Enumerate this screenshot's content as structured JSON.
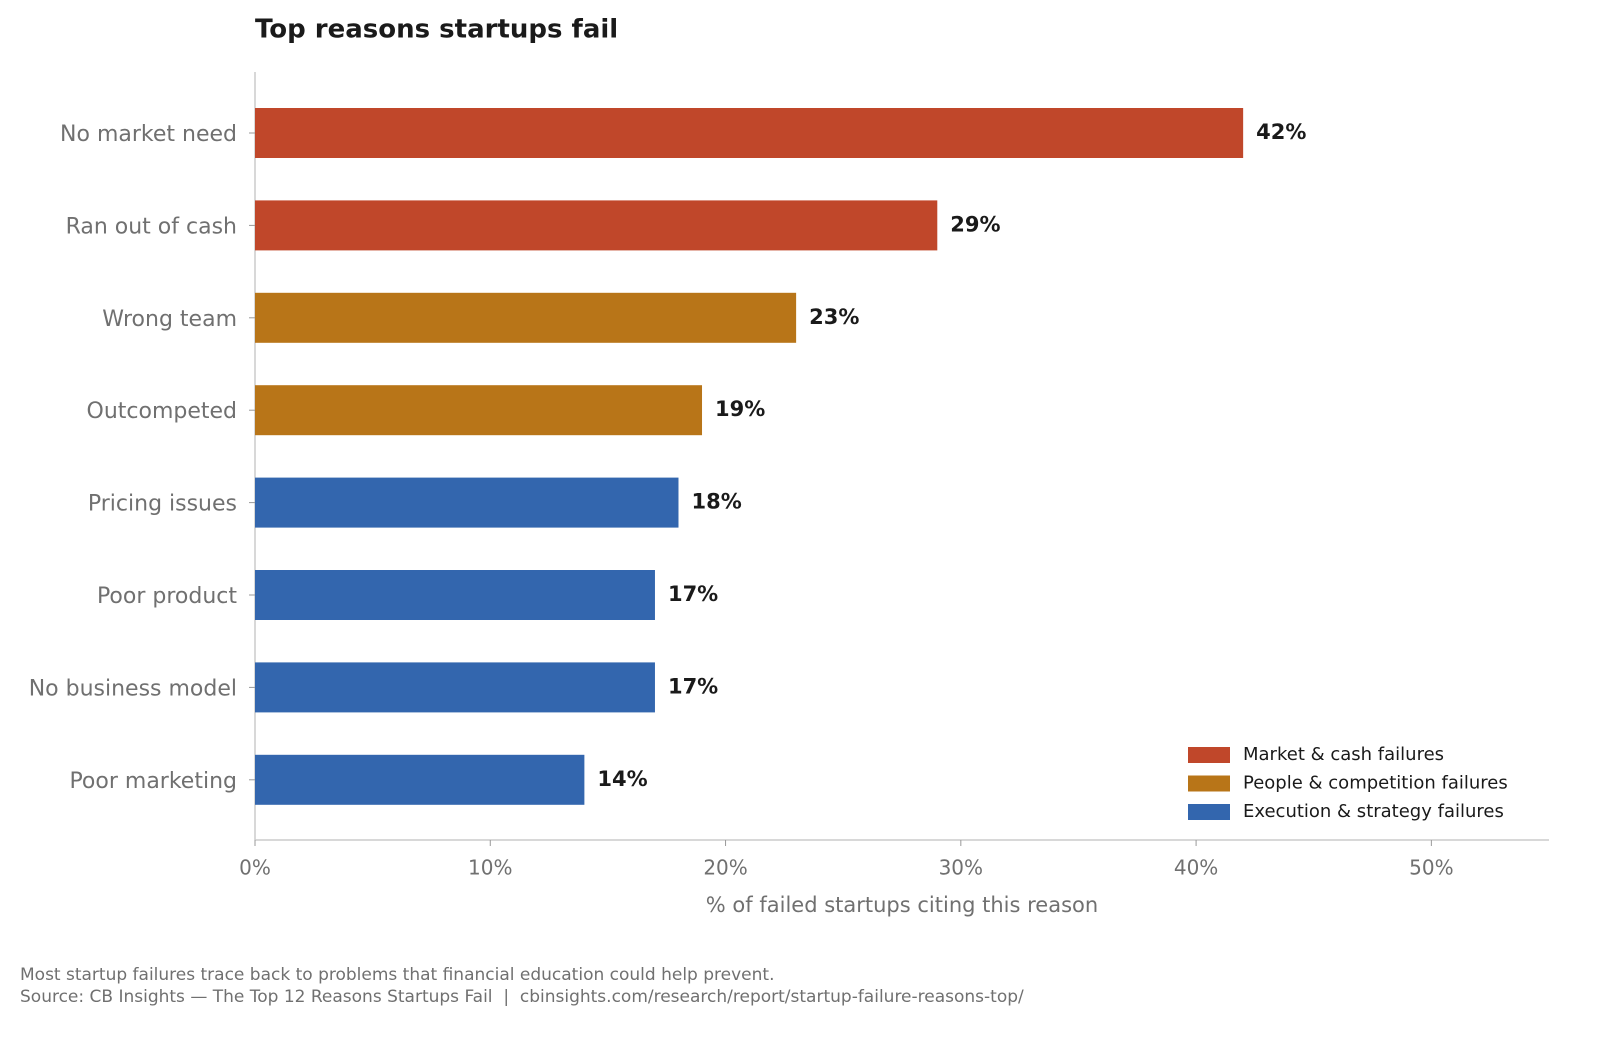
{
  "chart_data": {
    "type": "bar",
    "orientation": "horizontal",
    "title": "Top reasons startups fail",
    "categories": [
      "No market need",
      "Ran out of cash",
      "Wrong team",
      "Outcompeted",
      "Pricing issues",
      "Poor product",
      "No business model",
      "Poor marketing"
    ],
    "values": [
      42,
      29,
      23,
      19,
      18,
      17,
      17,
      14
    ],
    "value_labels": [
      "42%",
      "29%",
      "23%",
      "19%",
      "18%",
      "17%",
      "17%",
      "14%"
    ],
    "colors": [
      "#c0472a",
      "#c0472a",
      "#b87518",
      "#b87518",
      "#3366ae",
      "#3366ae",
      "#3366ae",
      "#3366ae"
    ],
    "legend": [
      {
        "name": "Market & cash failures",
        "color": "#c0472a"
      },
      {
        "name": "People & competition failures",
        "color": "#b87518"
      },
      {
        "name": "Execution & strategy failures",
        "color": "#3366ae"
      }
    ],
    "legend_position": "lower right",
    "xlabel": "% of failed startups citing this reason",
    "xlim": [
      0,
      55
    ],
    "xticks": [
      {
        "value": 0,
        "label": "0%"
      },
      {
        "value": 10,
        "label": "10%"
      },
      {
        "value": 20,
        "label": "20%"
      },
      {
        "value": 30,
        "label": "30%"
      },
      {
        "value": 40,
        "label": "40%"
      },
      {
        "value": 50,
        "label": "50%"
      }
    ],
    "note": "Most startup failures trace back to problems that financial education could help prevent.",
    "source": "Source: CB Insights — The Top 12 Reasons Startups Fail  |  cbinsights.com/research/report/startup-failure-reasons-top/"
  }
}
